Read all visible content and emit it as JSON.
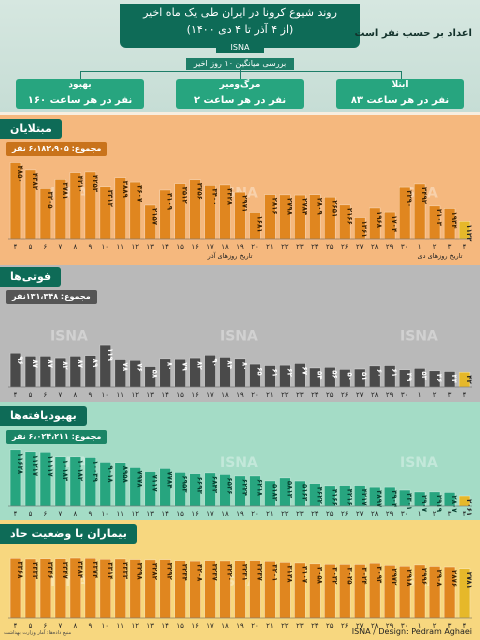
{
  "header": {
    "title": "روند شیوع کرونا در ایران طی یک ماه اخیر",
    "subtitle": "(از ۴ آذر تا ۴ دی ۱۴۰۰)",
    "source_tag": "ISNA",
    "note": "اعداد بر حسب نفر است",
    "range_label": "بررسی میانگین ۱۰ روز اخیر"
  },
  "stats": [
    {
      "title": "ابتلا",
      "value": "۸۳ نفر در هر ساعت",
      "color": "#27a57f"
    },
    {
      "title": "مرگ‌ومیر",
      "value": "۲ نفر در هر ساعت",
      "color": "#27a57f"
    },
    {
      "title": "بهبود",
      "value": "۱۶۰ نفر در هر ساعت",
      "color": "#27a57f"
    }
  ],
  "sections": {
    "cases": {
      "title": "مبتلایان",
      "total": "مجموع: ۶،۱۸۲،۹۰۵ نفر"
    },
    "deaths": {
      "title": "فوتی‌ها",
      "total": "مجموع: ۱۳۱،۳۴۸نفر"
    },
    "recovered": {
      "title": "بهبودیافته‌ها",
      "total": "مجموع: ۶،۰۲۴،۲۱۱ نفر"
    },
    "critical": {
      "title": "بیماران با وضعیت حاد",
      "total": ""
    }
  },
  "watermark": "ISNA",
  "footer": {
    "source": "منبع داده‌ها: آمار وزارت بهداشت",
    "credit": "ISNA / Design: Pedram Aghaei"
  },
  "colors": {
    "cases_bg": "#f5b87e",
    "cases_bar": "#e0861f",
    "deaths_bg": "#b9b9b9",
    "deaths_bar": "#4a4a4a",
    "recovered_bg": "#a4dcc6",
    "recovered_bar": "#27a57f",
    "critical_bg": "#f7d77f",
    "critical_bar": "#e0861f",
    "header_dark": "#0e6b57",
    "last_bar": "#e6b82a"
  },
  "chart_data": [
    {
      "type": "bar",
      "name": "cases",
      "categories": [
        "4",
        "5",
        "6",
        "7",
        "8",
        "9",
        "10",
        "11",
        "12",
        "13",
        "14",
        "15",
        "16",
        "17",
        "18",
        "19",
        "20",
        "21",
        "22",
        "23",
        "24",
        "25",
        "26",
        "27",
        "28",
        "29",
        "30",
        "1",
        "2",
        "3",
        "4"
      ],
      "values": [
        4850,
        4382,
        3205,
        3781,
        4210,
        4253,
        3312,
        3889,
        3607,
        2157,
        3109,
        3512,
        3756,
        3400,
        3428,
        2971,
        1681,
        2816,
        2798,
        2784,
        2809,
        2651,
        2166,
        1361,
        1968,
        1704,
        3290,
        3492,
        2103,
        1934,
        1122
      ],
      "labels": [
        "۴۸۵۰",
        "۴۳۸۲",
        "۳۲۰۵",
        "۳۷۸۱",
        "۴۲۱۰",
        "۴۲۵۳",
        "۳۳۱۲",
        "۳۸۸۹",
        "۳۶۰۷",
        "۲۱۵۷",
        "۳۱۰۹",
        "۳۵۱۲",
        "۳۷۵۶",
        "۳۴۰۰",
        "۳۴۲۸",
        "۲۹۷۱",
        "۱۶۸۱",
        "۲۸۱۶",
        "۲۷۹۸",
        "۲۷۸۴",
        "۲۸۰۹",
        "۲۶۵۱",
        "۲۱۶۶",
        "۱۳۶۱",
        "۱۹۶۸",
        "۱۷۰۴",
        "۳۲۹۰",
        "۳۴۹۲",
        "۲۱۰۳",
        "۱۹۳۴",
        "۱۱۲۲"
      ],
      "xlabel_left": "تاریخ روزهای آذر",
      "xlabel_right": "تاریخ روزهای دی"
    },
    {
      "type": "bar",
      "name": "deaths",
      "categories": [
        "4",
        "5",
        "6",
        "7",
        "8",
        "9",
        "10",
        "11",
        "12",
        "13",
        "14",
        "15",
        "16",
        "17",
        "18",
        "19",
        "20",
        "21",
        "22",
        "23",
        "24",
        "25",
        "26",
        "27",
        "28",
        "29",
        "30",
        "1",
        "2",
        "3",
        "4"
      ],
      "values": [
        96,
        87,
        87,
        82,
        87,
        89,
        119,
        78,
        76,
        58,
        80,
        79,
        82,
        90,
        84,
        80,
        65,
        61,
        62,
        67,
        54,
        56,
        50,
        51,
        60,
        61,
        49,
        53,
        46,
        44,
        42
      ],
      "labels": [
        "۹۶",
        "۸۷",
        "۸۷",
        "۸۲",
        "۸۷",
        "۸۹",
        "۱۱۹",
        "۷۸",
        "۷۶",
        "۵۸",
        "۸۰",
        "۷۹",
        "۸۲",
        "۹۰",
        "۸۴",
        "۸۰",
        "۶۵",
        "۶۱",
        "۶۲",
        "۶۷",
        "۵۴",
        "۵۶",
        "۵۰",
        "۵۱",
        "۶۰",
        "۶۱",
        "۴۹",
        "۵۳",
        "۴۶",
        "۴۴",
        "۴۲"
      ]
    },
    {
      "type": "bar",
      "name": "recovered",
      "categories": [
        "4",
        "5",
        "6",
        "7",
        "8",
        "9",
        "10",
        "11",
        "12",
        "13",
        "14",
        "15",
        "16",
        "17",
        "18",
        "19",
        "20",
        "21",
        "22",
        "23",
        "24",
        "25",
        "26",
        "27",
        "28",
        "29",
        "30",
        "1",
        "2",
        "3",
        "4"
      ],
      "values": [
        11628,
        11217,
        11117,
        10183,
        10182,
        10039,
        9018,
        8958,
        7978,
        7117,
        7784,
        6953,
        6693,
        6843,
        6536,
        6224,
        6218,
        5183,
        5813,
        5163,
        4622,
        4166,
        4216,
        4217,
        3897,
        3904,
        3301,
        2907,
        2919,
        2807,
        2061
      ],
      "labels": [
        "۱۱۶۲۸",
        "۱۱۲۱۷",
        "۱۱۱۱۷",
        "۱۰۱۸۳",
        "۱۰۱۸۲",
        "۱۰۰۳۹",
        "۹۰۱۸",
        "۸۹۵۸",
        "۷۹۷۸",
        "۷۱۱۷",
        "۷۷۸۴",
        "۶۹۵۳",
        "۶۶۹۳",
        "۶۸۴۳",
        "۶۵۳۶",
        "۶۲۲۴",
        "۶۲۱۸",
        "۵۱۸۳",
        "۵۸۱۳",
        "۵۱۶۳",
        "۴۶۲۲",
        "۴۱۶۶",
        "۴۲۱۶",
        "۴۲۱۷",
        "۳۸۹۷",
        "۳۹۰۴",
        "۳۳۰۱",
        "۲۹۰۷",
        "۲۹۱۹",
        "۲۸۰۷",
        "۲۰۶۱"
      ]
    },
    {
      "type": "bar",
      "name": "critical",
      "categories": [
        "4",
        "5",
        "6",
        "7",
        "8",
        "9",
        "10",
        "11",
        "12",
        "13",
        "14",
        "15",
        "16",
        "17",
        "18",
        "19",
        "20",
        "21",
        "22",
        "23",
        "24",
        "25",
        "26",
        "27",
        "28",
        "29",
        "30",
        "1",
        "2",
        "3",
        "4"
      ],
      "values": [
        3368,
        3333,
        3346,
        3347,
        3384,
        3374,
        3314,
        3333,
        3298,
        3282,
        3292,
        3234,
        3208,
        3237,
        3220,
        3231,
        3237,
        3201,
        3138,
        3107,
        3058,
        3032,
        3025,
        3024,
        3093,
        2972,
        2918,
        2996,
        2908,
        2876,
        2781
      ],
      "labels": [
        "۳۳۶۸",
        "۳۳۳۳",
        "۳۳۴۶",
        "۳۳۴۷",
        "۳۳۸۴",
        "۳۳۷۴",
        "۳۳۱۴",
        "۳۳۳۳",
        "۳۲۹۸",
        "۳۲۸۲",
        "۳۲۹۲",
        "۳۲۳۴",
        "۳۲۰۸",
        "۳۲۳۷",
        "۳۲۲۰",
        "۳۲۳۱",
        "۳۲۳۷",
        "۳۲۰۱",
        "۳۱۳۸",
        "۳۱۰۷",
        "۳۰۵۸",
        "۳۰۳۲",
        "۳۰۲۵",
        "۳۰۲۴",
        "۳۰۹۳",
        "۲۹۷۲",
        "۲۹۱۸",
        "۲۹۹۶",
        "۲۹۰۸",
        "۲۸۷۶",
        "۲۷۸۱"
      ]
    }
  ]
}
